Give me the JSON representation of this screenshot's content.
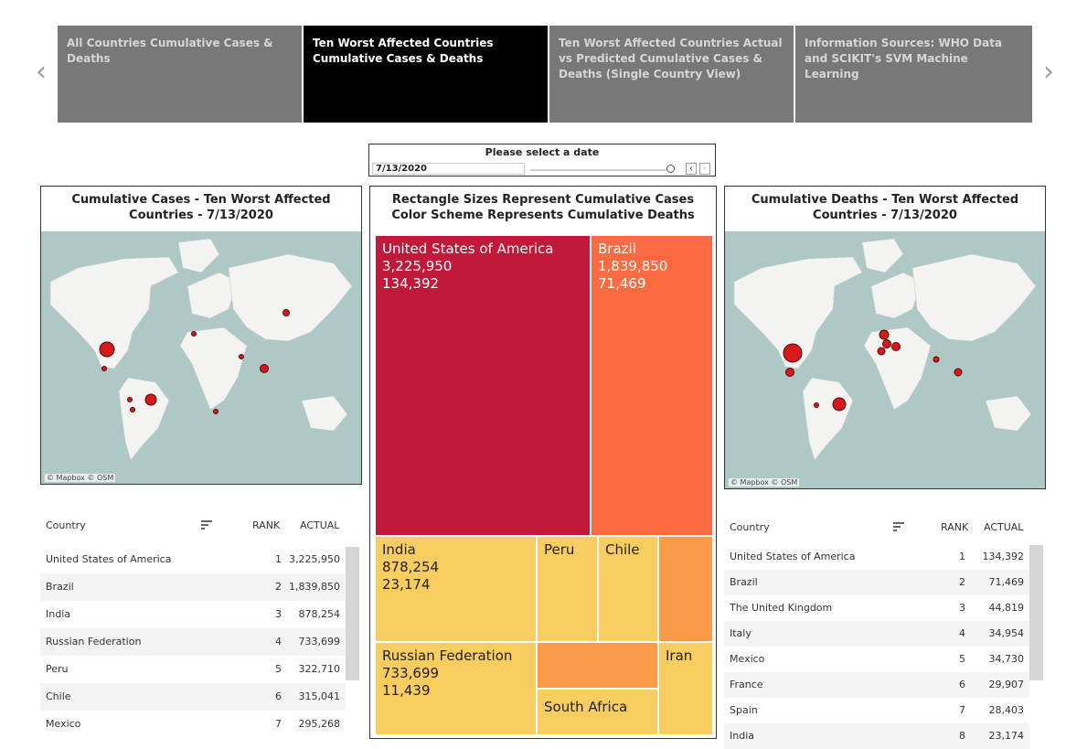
{
  "story": {
    "tabs": [
      {
        "label": "All Countries Cumulative Cases & Deaths",
        "active": false
      },
      {
        "label": "Ten Worst Affected Countries Cumulative Cases & Deaths",
        "active": true
      },
      {
        "label": "Ten Worst Affected Countries Actual vs Predicted Cumulative Cases & Deaths (Single Country View)",
        "active": false
      },
      {
        "label": "Information Sources: WHO Data and SCIKIT's SVM Machine Learning",
        "active": false
      }
    ],
    "prev_arrow": "‹",
    "next_arrow": "›"
  },
  "filter": {
    "title": "Please select a date",
    "value": "7/13/2020",
    "slider_position": 1.0,
    "prev_label": "‹",
    "next_label": "›"
  },
  "cases_map": {
    "title_line1": "Cumulative Cases - Ten Worst Affected",
    "title_line2": "Countries - 7/13/2020",
    "attribution": "© Mapbox  © OSM",
    "point_color": "#d7191c"
  },
  "deaths_map": {
    "title_line1": "Cumulative Deaths - Ten Worst Affected",
    "title_line2": "Countries - 7/13/2020",
    "attribution": "© Mapbox  © OSM",
    "point_color": "#d7191c"
  },
  "treemap": {
    "title_line1": "Rectangle Sizes Represent Cumulative Cases",
    "title_line2": "Color Scheme Represents Cumulative Deaths",
    "cells": [
      {
        "country": "United States of America",
        "cases": "3,225,950",
        "deaths": "134,392",
        "color": "#c0193a",
        "text_color": "#ffffff"
      },
      {
        "country": "Brazil",
        "cases": "1,839,850",
        "deaths": "71,469",
        "color": "#fc6a42",
        "text_color": "#ffffff"
      },
      {
        "country": "India",
        "cases": "878,254",
        "deaths": "23,174",
        "color": "#f8cd5f",
        "text_color": "#222222"
      },
      {
        "country": "Peru",
        "cases": "",
        "deaths": "",
        "color": "#f8cd5f",
        "text_color": "#222222"
      },
      {
        "country": "Chile",
        "cases": "",
        "deaths": "",
        "color": "#f8cd5f",
        "text_color": "#222222"
      },
      {
        "country": "",
        "cases": "",
        "deaths": "",
        "color": "#fb9a49",
        "text_color": "#222222"
      },
      {
        "country": "Russian Federation",
        "cases": "733,699",
        "deaths": "11,439",
        "color": "#f8cd5f",
        "text_color": "#222222"
      },
      {
        "country": "",
        "cases": "",
        "deaths": "",
        "color": "#fb9a49",
        "text_color": "#222222"
      },
      {
        "country": "South Africa",
        "cases": "",
        "deaths": "",
        "color": "#f8cd5f",
        "text_color": "#222222"
      },
      {
        "country": "Iran",
        "cases": "",
        "deaths": "",
        "color": "#f8cd5f",
        "text_color": "#222222"
      }
    ]
  },
  "cases_table": {
    "headers": {
      "country": "Country",
      "rank": "RANK",
      "actual": "ACTUAL"
    },
    "rows": [
      {
        "country": "United States of America",
        "rank": "1",
        "actual": "3,225,950"
      },
      {
        "country": "Brazil",
        "rank": "2",
        "actual": "1,839,850"
      },
      {
        "country": "India",
        "rank": "3",
        "actual": "878,254"
      },
      {
        "country": "Russian Federation",
        "rank": "4",
        "actual": "733,699"
      },
      {
        "country": "Peru",
        "rank": "5",
        "actual": "322,710"
      },
      {
        "country": "Chile",
        "rank": "6",
        "actual": "315,041"
      },
      {
        "country": "Mexico",
        "rank": "7",
        "actual": "295,268"
      }
    ]
  },
  "deaths_table": {
    "headers": {
      "country": "Country",
      "rank": "RANK",
      "actual": "ACTUAL"
    },
    "rows": [
      {
        "country": "United States of America",
        "rank": "1",
        "actual": "134,392"
      },
      {
        "country": "Brazil",
        "rank": "2",
        "actual": "71,469"
      },
      {
        "country": "The United Kingdom",
        "rank": "3",
        "actual": "44,819"
      },
      {
        "country": "Italy",
        "rank": "4",
        "actual": "34,954"
      },
      {
        "country": "Mexico",
        "rank": "5",
        "actual": "34,730"
      },
      {
        "country": "France",
        "rank": "6",
        "actual": "29,907"
      },
      {
        "country": "Spain",
        "rank": "7",
        "actual": "28,403"
      },
      {
        "country": "India",
        "rank": "8",
        "actual": "23,174"
      }
    ]
  }
}
